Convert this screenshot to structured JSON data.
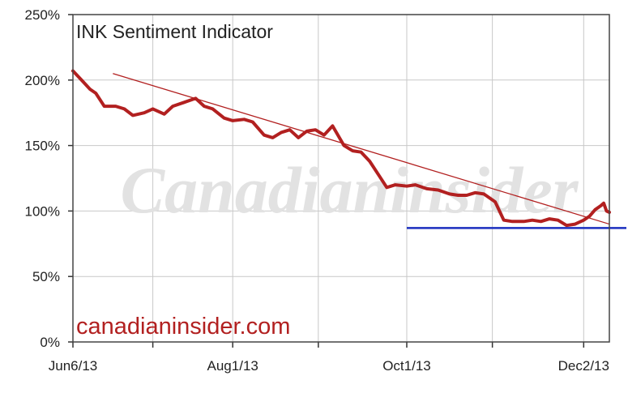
{
  "chart_data": {
    "type": "line",
    "title": "INK Sentiment Indicator",
    "xlabel": "",
    "ylabel": "",
    "x_tick_labels": [
      "Jun6/13",
      "Aug1/13",
      "Oct1/13",
      "Dec2/13"
    ],
    "x_ticks": [
      "2013-06-06",
      "2013-08-01",
      "2013-10-01",
      "2013-12-02"
    ],
    "xlim": [
      "2013-06-06",
      "2013-12-11"
    ],
    "ylim": [
      0,
      250
    ],
    "y_ticks": [
      0,
      50,
      100,
      150,
      200,
      250
    ],
    "y_tick_labels": [
      "0%",
      "50%",
      "100%",
      "150%",
      "200%",
      "250%"
    ],
    "y_unit": "%",
    "grid": true,
    "watermark": "Canadianinsider",
    "footer_text": "canadianinsider.com",
    "colors": {
      "series": "#b22020",
      "trendline": "#b22020",
      "support": "#1b2fbf",
      "footer": "#b22020",
      "grid": "#c8c8c8"
    },
    "series": [
      {
        "color": "#b22020",
        "points": [
          [
            "2013-06-06",
            207
          ],
          [
            "2013-06-09",
            200
          ],
          [
            "2013-06-12",
            193
          ],
          [
            "2013-06-14",
            190
          ],
          [
            "2013-06-17",
            180
          ],
          [
            "2013-06-21",
            180
          ],
          [
            "2013-06-24",
            178
          ],
          [
            "2013-06-27",
            173
          ],
          [
            "2013-07-01",
            175
          ],
          [
            "2013-07-04",
            178
          ],
          [
            "2013-07-08",
            174
          ],
          [
            "2013-07-11",
            180
          ],
          [
            "2013-07-15",
            183
          ],
          [
            "2013-07-19",
            186
          ],
          [
            "2013-07-22",
            180
          ],
          [
            "2013-07-25",
            178
          ],
          [
            "2013-07-29",
            171
          ],
          [
            "2013-08-01",
            169
          ],
          [
            "2013-08-05",
            170
          ],
          [
            "2013-08-08",
            168
          ],
          [
            "2013-08-12",
            158
          ],
          [
            "2013-08-15",
            156
          ],
          [
            "2013-08-18",
            160
          ],
          [
            "2013-08-21",
            162
          ],
          [
            "2013-08-24",
            156
          ],
          [
            "2013-08-27",
            161
          ],
          [
            "2013-08-30",
            162
          ],
          [
            "2013-09-02",
            158
          ],
          [
            "2013-09-05",
            165
          ],
          [
            "2013-09-09",
            150
          ],
          [
            "2013-09-12",
            146
          ],
          [
            "2013-09-15",
            145
          ],
          [
            "2013-09-18",
            138
          ],
          [
            "2013-09-21",
            128
          ],
          [
            "2013-09-24",
            118
          ],
          [
            "2013-09-27",
            120
          ],
          [
            "2013-10-01",
            119
          ],
          [
            "2013-10-04",
            120
          ],
          [
            "2013-10-08",
            117
          ],
          [
            "2013-10-12",
            116
          ],
          [
            "2013-10-16",
            113
          ],
          [
            "2013-10-19",
            112
          ],
          [
            "2013-10-22",
            112
          ],
          [
            "2013-10-25",
            114
          ],
          [
            "2013-10-28",
            113
          ],
          [
            "2013-11-01",
            107
          ],
          [
            "2013-11-04",
            93
          ],
          [
            "2013-11-07",
            92
          ],
          [
            "2013-11-11",
            92
          ],
          [
            "2013-11-14",
            93
          ],
          [
            "2013-11-17",
            92
          ],
          [
            "2013-11-20",
            94
          ],
          [
            "2013-11-23",
            93
          ],
          [
            "2013-11-26",
            89
          ],
          [
            "2013-11-29",
            90
          ],
          [
            "2013-12-02",
            93
          ],
          [
            "2013-12-04",
            96
          ],
          [
            "2013-12-06",
            101
          ],
          [
            "2013-12-08",
            104
          ],
          [
            "2013-12-09",
            106
          ],
          [
            "2013-12-10",
            100
          ],
          [
            "2013-12-11",
            99
          ]
        ]
      }
    ],
    "annotations": [
      {
        "type": "trendline",
        "color": "#b22020",
        "from": [
          "2013-06-20",
          205
        ],
        "to": [
          "2013-12-11",
          90
        ]
      },
      {
        "type": "support-line",
        "color": "#1b2fbf",
        "from": [
          "2013-10-01",
          87
        ],
        "to": [
          "2013-12-11",
          87
        ]
      }
    ]
  }
}
